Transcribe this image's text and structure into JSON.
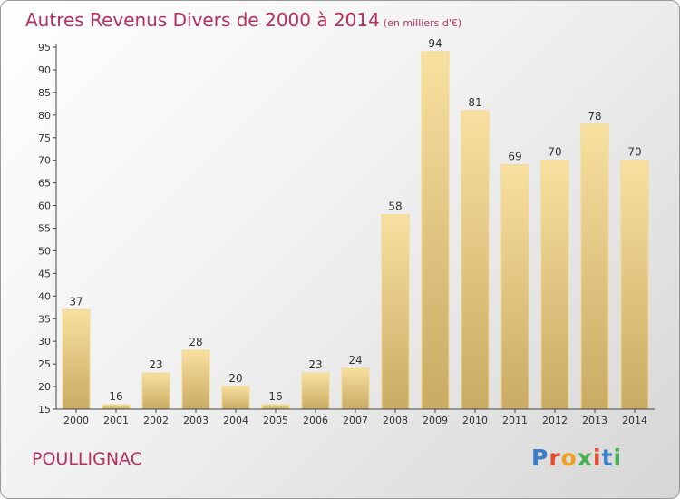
{
  "header": {
    "title": "Autres Revenus Divers de 2000 à 2014",
    "unit": "(en milliers d'€)"
  },
  "footer": {
    "commune": "POULLIGNAC",
    "logo": "Proxiti"
  },
  "colors": {
    "title": "#b5305f",
    "bar_light": "#f8e0a0",
    "bar_dark": "#c9ab63",
    "logo": [
      "#3a7dc8",
      "#e64c2e",
      "#f0a020",
      "#48b050",
      "#e64c2e",
      "#3a7dc8",
      "#48b050"
    ]
  },
  "chart_data": {
    "type": "bar",
    "categories": [
      "2000",
      "2001",
      "2002",
      "2003",
      "2004",
      "2005",
      "2006",
      "2007",
      "2008",
      "2009",
      "2010",
      "2011",
      "2012",
      "2013",
      "2014"
    ],
    "values": [
      37,
      16,
      23,
      28,
      20,
      16,
      23,
      24,
      58,
      94,
      81,
      69,
      70,
      78,
      70
    ],
    "ylim": [
      15,
      95
    ],
    "yticks": [
      15,
      20,
      25,
      30,
      35,
      40,
      45,
      50,
      55,
      60,
      65,
      70,
      75,
      80,
      85,
      90,
      95
    ],
    "grid": false,
    "legend": "none"
  }
}
